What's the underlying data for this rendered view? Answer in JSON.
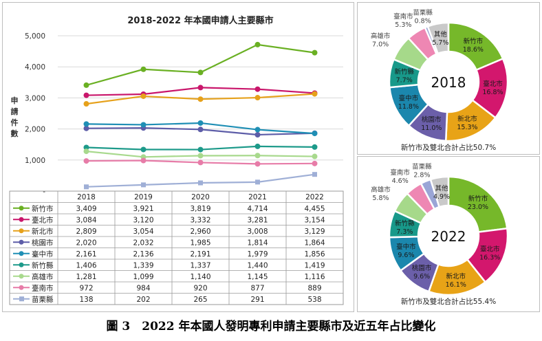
{
  "line_chart": {
    "title": "2018-2022 年本國申請人主要縣市",
    "ylabel": "申請件數",
    "yticks": [
      "5,000",
      "4,000",
      "3,000",
      "2,000",
      "1,000",
      "-"
    ]
  },
  "chart_data": [
    {
      "type": "line",
      "title": "2018-2022 年本國申請人主要縣市",
      "xlabel": "",
      "ylabel": "申請件數",
      "ylim": [
        0,
        5000
      ],
      "grid": true,
      "legend": "table-below",
      "x": [
        "2018",
        "2019",
        "2020",
        "2021",
        "2022"
      ],
      "series": [
        {
          "name": "新竹市",
          "color": "#6ab023",
          "values": [
            3409,
            3921,
            3819,
            4714,
            4455
          ],
          "labels": [
            "3,409",
            "3,921",
            "3,819",
            "4,714",
            "4,455"
          ]
        },
        {
          "name": "臺北市",
          "color": "#c9166b",
          "values": [
            3084,
            3120,
            3332,
            3281,
            3154
          ],
          "labels": [
            "3,084",
            "3,120",
            "3,332",
            "3,281",
            "3,154"
          ]
        },
        {
          "name": "新北市",
          "color": "#e6a11b",
          "values": [
            2809,
            3054,
            2960,
            3008,
            3129
          ],
          "labels": [
            "2,809",
            "3,054",
            "2,960",
            "3,008",
            "3,129"
          ]
        },
        {
          "name": "桃園市",
          "color": "#5d5da8",
          "values": [
            2020,
            2032,
            1985,
            1814,
            1864
          ],
          "labels": [
            "2,020",
            "2,032",
            "1,985",
            "1,814",
            "1,864"
          ]
        },
        {
          "name": "臺中市",
          "color": "#1f8fb5",
          "values": [
            2161,
            2136,
            2191,
            1979,
            1856
          ],
          "labels": [
            "2,161",
            "2,136",
            "2,191",
            "1,979",
            "1,856"
          ]
        },
        {
          "name": "新竹縣",
          "color": "#1d9a8a",
          "values": [
            1406,
            1339,
            1337,
            1440,
            1419
          ],
          "labels": [
            "1,406",
            "1,339",
            "1,337",
            "1,440",
            "1,419"
          ]
        },
        {
          "name": "高雄市",
          "color": "#a8d98d",
          "values": [
            1281,
            1099,
            1140,
            1145,
            1116
          ],
          "labels": [
            "1,281",
            "1,099",
            "1,140",
            "1,145",
            "1,116"
          ]
        },
        {
          "name": "臺南市",
          "color": "#e77ca8",
          "values": [
            972,
            984,
            920,
            877,
            889
          ],
          "labels": [
            "972",
            "984",
            "920",
            "877",
            "889"
          ]
        },
        {
          "name": "苗栗縣",
          "color": "#9fafd6",
          "values": [
            138,
            202,
            265,
            291,
            538
          ],
          "labels": [
            "138",
            "202",
            "265",
            "291",
            "538"
          ]
        }
      ]
    },
    {
      "type": "pie",
      "year": "2018",
      "footer": "新竹市及雙北合計占比50.7%",
      "slices": [
        {
          "name": "新竹市",
          "pct": "18.6%",
          "value": 18.6,
          "color": "#76b82a",
          "text_color": "#1a1a1a"
        },
        {
          "name": "臺北市",
          "pct": "16.8%",
          "value": 16.8,
          "color": "#d3176d",
          "text_color": "#1a1a1a"
        },
        {
          "name": "新北市",
          "pct": "15.3%",
          "value": 15.3,
          "color": "#e8a317",
          "text_color": "#1a1a1a"
        },
        {
          "name": "桃園市",
          "pct": "11.0%",
          "value": 11.0,
          "color": "#6b5fa9",
          "text_color": "#1a1a1a"
        },
        {
          "name": "臺中市",
          "pct": "11.8%",
          "value": 11.8,
          "color": "#1b87ad",
          "text_color": "#1a1a1a"
        },
        {
          "name": "新竹縣",
          "pct": "7.7%",
          "value": 7.7,
          "color": "#18998a",
          "text_color": "#1a1a1a"
        },
        {
          "name": "高雄市",
          "pct": "7.0%",
          "value": 7.0,
          "color": "#a6d98a",
          "text_color": "#444444"
        },
        {
          "name": "臺南市",
          "pct": "5.3%",
          "value": 5.3,
          "color": "#ee87b3",
          "text_color": "#444444"
        },
        {
          "name": "苗栗縣",
          "pct": "0.8%",
          "value": 0.8,
          "color": "#9aa5d6",
          "text_color": "#444444"
        },
        {
          "name": "其他",
          "pct": "5.7%",
          "value": 5.7,
          "color": "#c9c9c9",
          "text_color": "#1a1a1a"
        }
      ]
    },
    {
      "type": "pie",
      "year": "2022",
      "footer": "新竹市及雙北合計占比55.4%",
      "slices": [
        {
          "name": "新竹市",
          "pct": "23.0%",
          "value": 23.0,
          "color": "#76b82a",
          "text_color": "#1a1a1a"
        },
        {
          "name": "臺北市",
          "pct": "16.3%",
          "value": 16.3,
          "color": "#d3176d",
          "text_color": "#1a1a1a"
        },
        {
          "name": "新北市",
          "pct": "16.1%",
          "value": 16.1,
          "color": "#e8a317",
          "text_color": "#1a1a1a"
        },
        {
          "name": "桃園市",
          "pct": "9.6%",
          "value": 9.6,
          "color": "#6b5fa9",
          "text_color": "#1a1a1a"
        },
        {
          "name": "臺中市",
          "pct": "9.6%",
          "value": 9.6,
          "color": "#1b87ad",
          "text_color": "#1a1a1a"
        },
        {
          "name": "新竹縣",
          "pct": "7.3%",
          "value": 7.3,
          "color": "#18998a",
          "text_color": "#1a1a1a"
        },
        {
          "name": "高雄市",
          "pct": "5.8%",
          "value": 5.8,
          "color": "#a6d98a",
          "text_color": "#444444"
        },
        {
          "name": "臺南市",
          "pct": "4.6%",
          "value": 4.6,
          "color": "#ee87b3",
          "text_color": "#444444"
        },
        {
          "name": "苗栗縣",
          "pct": "2.8%",
          "value": 2.8,
          "color": "#9aa5d6",
          "text_color": "#444444"
        },
        {
          "name": "其他",
          "pct": "4.9%",
          "value": 4.9,
          "color": "#c9c9c9",
          "text_color": "#1a1a1a"
        }
      ]
    }
  ],
  "caption": "圖 3　2022 年本國人發明專利申請主要縣市及近五年占比變化"
}
